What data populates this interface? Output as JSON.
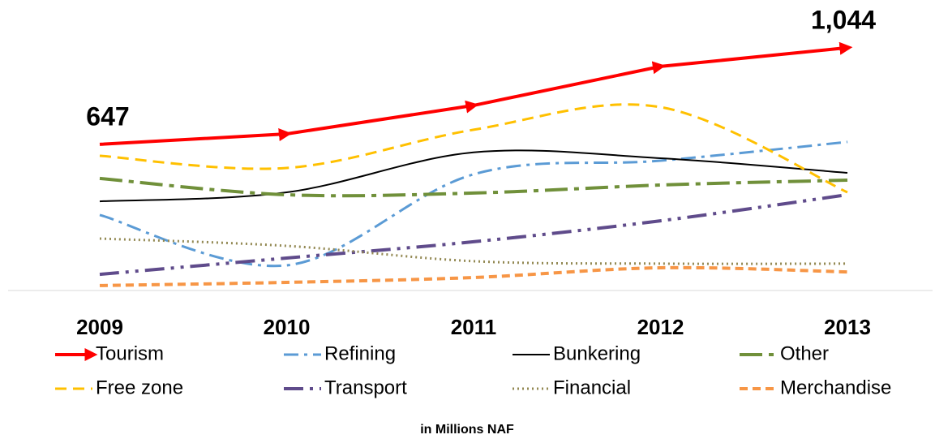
{
  "chart_data": {
    "type": "line",
    "categories": [
      "2009",
      "2010",
      "2011",
      "2012",
      "2013"
    ],
    "series": [
      {
        "name": "Tourism",
        "color": "#ff0000",
        "values": [
          647,
          690,
          807,
          967,
          1044
        ],
        "value_labels": [
          "647",
          null,
          null,
          null,
          "1,044"
        ]
      },
      {
        "name": "Refining",
        "color": "#5b9bd5",
        "values": [
          357,
          150,
          524,
          580,
          657
        ]
      },
      {
        "name": "Bunkering",
        "color": "#000000",
        "values": [
          413,
          450,
          614,
          590,
          530
        ]
      },
      {
        "name": "Other",
        "color": "#70903a",
        "values": [
          507,
          440,
          447,
          480,
          500
        ]
      },
      {
        "name": "Free zone",
        "color": "#ffc000",
        "values": [
          600,
          550,
          707,
          800,
          450
        ]
      },
      {
        "name": "Transport",
        "color": "#5f4b8b",
        "values": [
          113,
          180,
          247,
          333,
          440
        ]
      },
      {
        "name": "Financial",
        "color": "#938953",
        "values": [
          260,
          230,
          167,
          157,
          157
        ]
      },
      {
        "name": "Merchandise",
        "color": "#f79646",
        "values": [
          67,
          80,
          100,
          140,
          123
        ]
      }
    ],
    "ylim": [
      40,
      1100
    ],
    "note": "in Millions NAF"
  }
}
